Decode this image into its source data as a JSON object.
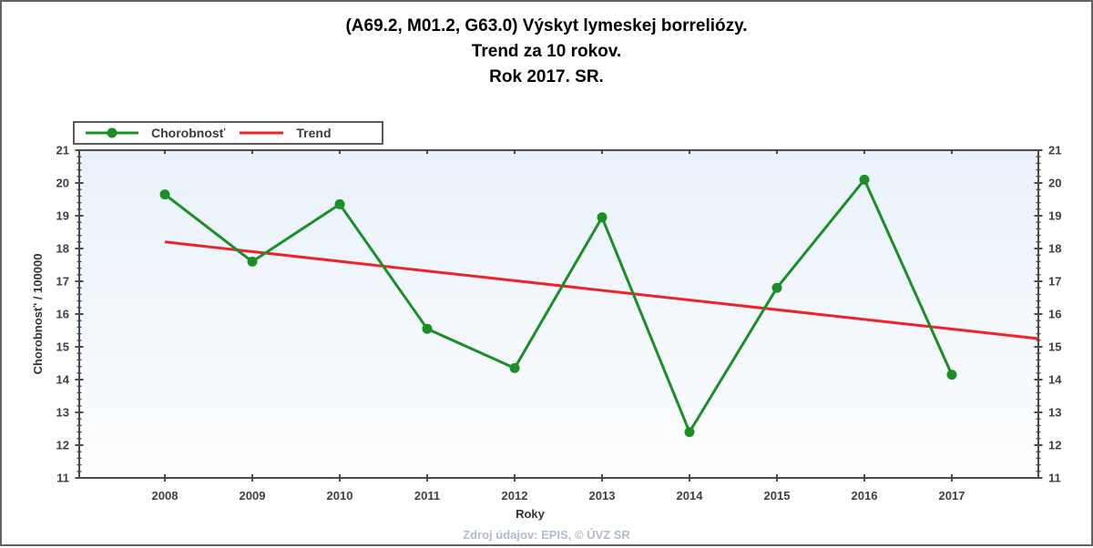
{
  "title": {
    "line1": "(A69.2, M01.2, G63.0) Výskyt lymeskej borreliózy.",
    "line2": "Trend za 10 rokov.",
    "line3": "Rok 2017. SR."
  },
  "legend": {
    "items": [
      {
        "label": "Chorobnosť",
        "color": "#1e8c28",
        "type": "line-marker"
      },
      {
        "label": "Trend",
        "color": "#ee2229",
        "type": "line"
      }
    ]
  },
  "chart_data": {
    "type": "line",
    "title": "(A69.2, M01.2, G63.0) Výskyt lymeskej borreliózy. Trend za 10 rokov. Rok 2017. SR.",
    "x": [
      2008,
      2009,
      2010,
      2011,
      2012,
      2013,
      2014,
      2015,
      2016,
      2017
    ],
    "series": [
      {
        "name": "Chorobnosť",
        "color": "#1e8c28",
        "marker": "circle",
        "values": [
          19.65,
          17.6,
          19.35,
          15.55,
          14.35,
          18.95,
          12.4,
          16.8,
          20.1,
          14.15
        ]
      },
      {
        "name": "Trend",
        "color": "#ee2229",
        "kind": "trend",
        "start_value": 18.2,
        "end_value": 15.25,
        "note": "straight line from 2008 position to right edge of plot"
      }
    ],
    "xlabel": "Roky",
    "ylabel": "Chorobnosť' / 100000",
    "ylim": [
      11,
      21
    ],
    "y_major_step": 1,
    "y_minor_step": 0.2,
    "grid": false,
    "legend_position": "top-left",
    "axis_color": "#4a4a4a",
    "plot_bg_top": "#e8f1fa",
    "plot_bg_bottom": "#fdfeff"
  },
  "footer": {
    "source": "Zdroj údajov: EPIS, © ÚVZ SR"
  }
}
